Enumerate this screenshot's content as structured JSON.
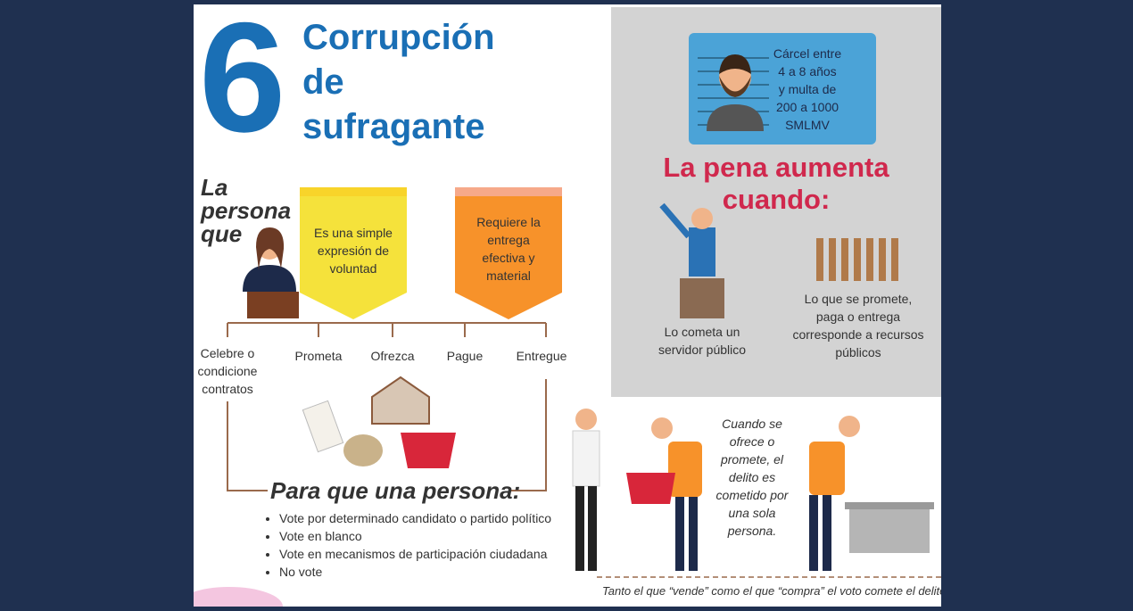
{
  "header": {
    "number": "6",
    "title_lines": [
      "Corrupción",
      "de",
      "sufragante"
    ]
  },
  "subject": {
    "label_lines": [
      "La",
      "persona",
      "que"
    ]
  },
  "conditions": [
    {
      "lines": [
        "Es una simple",
        "expresión de",
        "voluntad"
      ]
    },
    {
      "lines": [
        "Requiere la",
        "entrega",
        "efectiva y",
        "material"
      ]
    }
  ],
  "verbs": [
    {
      "lines": [
        "Celebre o",
        "condicione",
        "contratos"
      ]
    },
    {
      "lines": [
        "Prometa"
      ]
    },
    {
      "lines": [
        "Ofrezca"
      ]
    },
    {
      "lines": [
        "Pague"
      ]
    },
    {
      "lines": [
        "Entregue"
      ]
    }
  ],
  "purpose": {
    "title": "Para que una persona:",
    "items": [
      "Vote por determinado candidato o partido político",
      "Vote en blanco",
      "Vote en mecanismos de participación ciudadana",
      "No vote"
    ]
  },
  "penalty": {
    "box_lines": [
      "Cárcel entre",
      "4 a 8 años",
      "y multa de",
      "200 a 1000",
      "SMLMV"
    ],
    "heading_lines": [
      "La pena aumenta",
      "cuando:"
    ],
    "cases": [
      {
        "lines": [
          "Lo cometa un",
          "servidor público"
        ]
      },
      {
        "lines": [
          "Lo que se promete,",
          "paga o entrega",
          "corresponde a recursos",
          "públicos"
        ]
      }
    ]
  },
  "note": {
    "lines": [
      "Cuando se",
      "ofrece o",
      "promete, el",
      "delito es",
      "cometido por",
      "una sola",
      "persona."
    ]
  },
  "footer": "Tanto el que “vende” como el que “compra” el voto comete el delito"
}
